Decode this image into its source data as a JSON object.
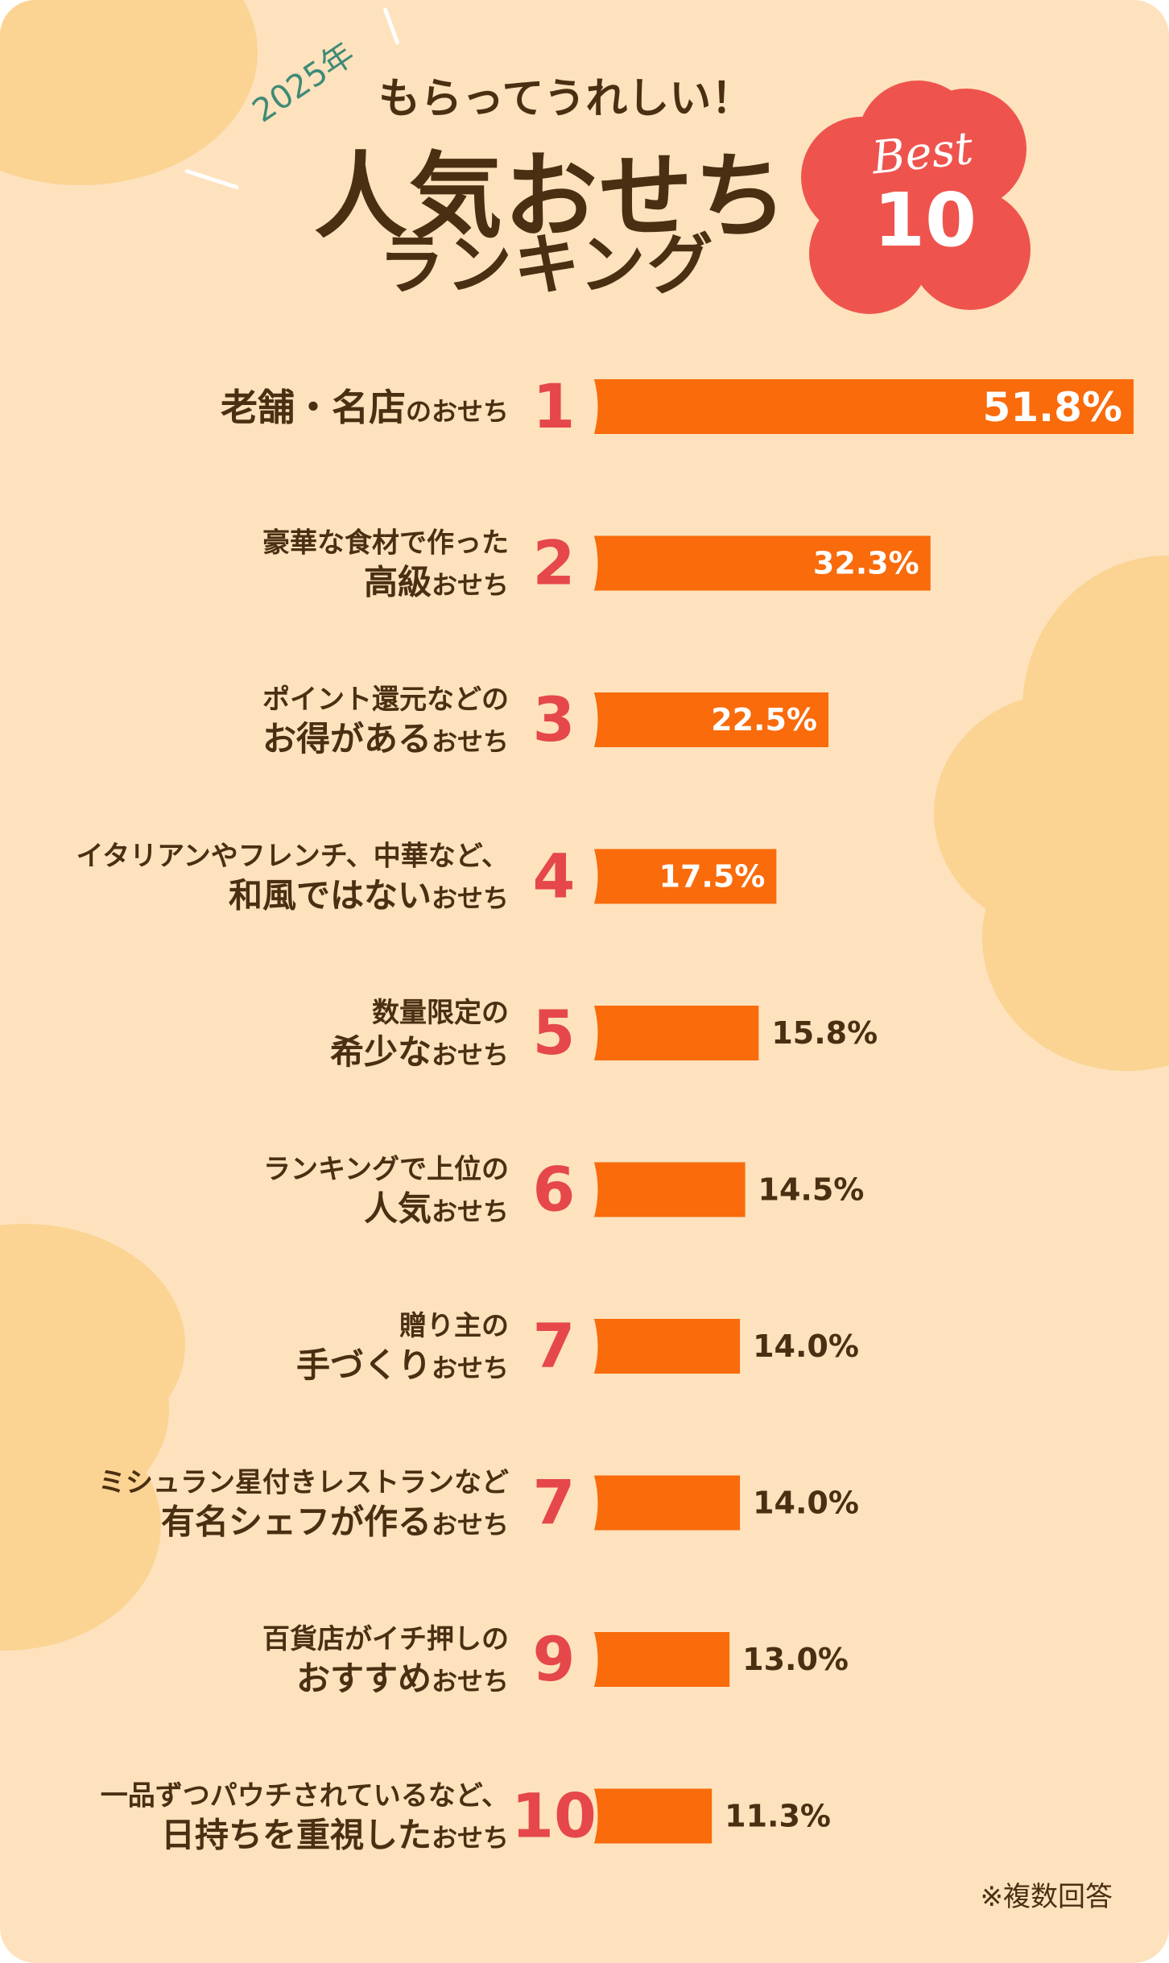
{
  "header": {
    "year": "2025年",
    "kicker": "もらってうれしい！",
    "title": "人気おせち",
    "subtitle": "ランキング",
    "badge_best": "Best",
    "badge_count": "10"
  },
  "colors": {
    "background": "#fde2bd",
    "blob": "#fbd393",
    "bar": "#f96b0b",
    "rank_number": "#e5474a",
    "text": "#4b2f12",
    "badge": "#ee544d",
    "year_text": "#3f8a76"
  },
  "note": "※複数回答",
  "chart_data": {
    "type": "bar",
    "orientation": "horizontal",
    "unit": "%",
    "xlim": [
      0,
      51.8
    ],
    "items": [
      {
        "rank": "1",
        "line1": "",
        "line2": "老舗・名店",
        "suffix": "のおせち",
        "value": 51.8,
        "label": "51.8%"
      },
      {
        "rank": "2",
        "line1": "豪華な食材で作った",
        "line2": "高級",
        "suffix": "おせち",
        "value": 32.3,
        "label": "32.3%"
      },
      {
        "rank": "3",
        "line1": "ポイント還元などの",
        "line2": "お得がある",
        "suffix": "おせち",
        "value": 22.5,
        "label": "22.5%"
      },
      {
        "rank": "4",
        "line1": "イタリアンやフレンチ、中華など、",
        "line2": "和風ではない",
        "suffix": "おせち",
        "value": 17.5,
        "label": "17.5%"
      },
      {
        "rank": "5",
        "line1": "数量限定の",
        "line2": "希少な",
        "suffix": "おせち",
        "value": 15.8,
        "label": "15.8%"
      },
      {
        "rank": "6",
        "line1": "ランキングで上位の",
        "line2": "人気",
        "suffix": "おせち",
        "value": 14.5,
        "label": "14.5%"
      },
      {
        "rank": "7",
        "line1": "贈り主の",
        "line2": "手づくり",
        "suffix": "おせち",
        "value": 14.0,
        "label": "14.0%"
      },
      {
        "rank": "7",
        "line1": "ミシュラン星付きレストランなど",
        "line2": "有名シェフが作る",
        "suffix": "おせち",
        "value": 14.0,
        "label": "14.0%"
      },
      {
        "rank": "9",
        "line1": "百貨店がイチ押しの",
        "line2": "おすすめ",
        "suffix": "おせち",
        "value": 13.0,
        "label": "13.0%"
      },
      {
        "rank": "10",
        "line1": "一品ずつパウチされているなど、",
        "line2": "日持ちを重視した",
        "suffix": "おせち",
        "value": 11.3,
        "label": "11.3%"
      }
    ]
  }
}
